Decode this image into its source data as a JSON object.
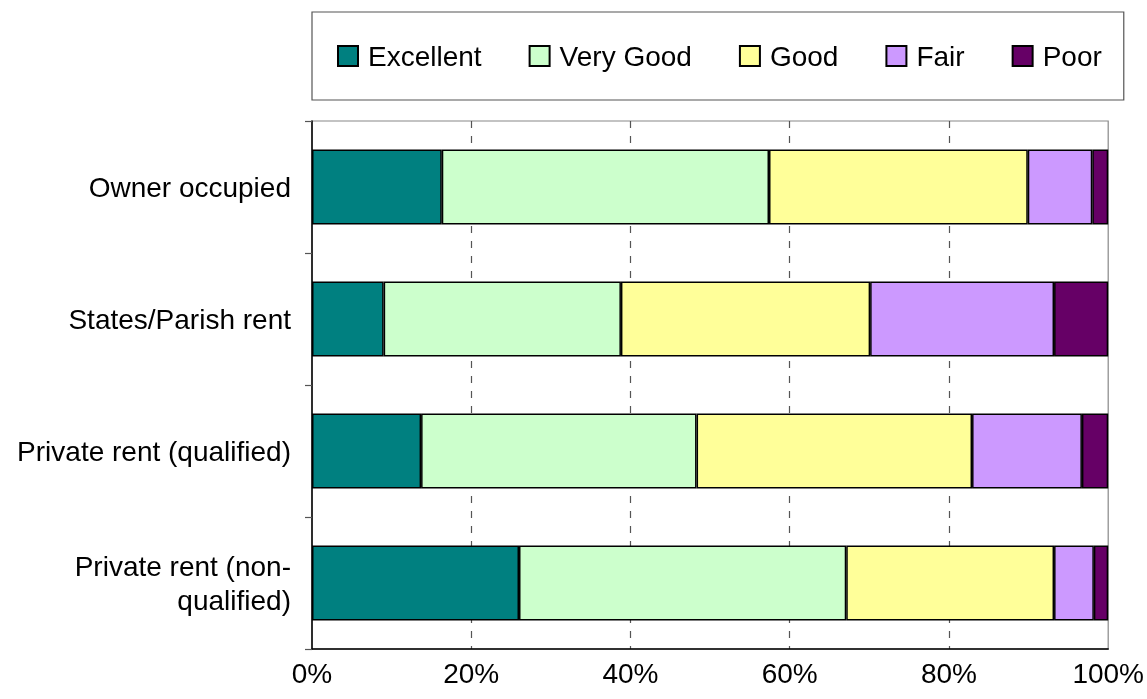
{
  "chart_data": {
    "type": "bar",
    "orientation": "horizontal",
    "stacked": true,
    "categories": [
      "Owner occupied",
      "States/Parish rent",
      "Private rent (qualified)",
      "Private rent (non-qualified)"
    ],
    "series": [
      {
        "name": "Excellent",
        "color": "#008080",
        "values": [
          16.3,
          9.0,
          13.7,
          26.0
        ]
      },
      {
        "name": "Very Good",
        "color": "#ccffcc",
        "values": [
          41.1,
          29.8,
          34.6,
          41.1
        ]
      },
      {
        "name": "Good",
        "color": "#ffff99",
        "values": [
          32.5,
          31.3,
          34.6,
          26.1
        ]
      },
      {
        "name": "Fair",
        "color": "#cc99ff",
        "values": [
          8.1,
          23.1,
          13.8,
          5.0
        ]
      },
      {
        "name": "Poor",
        "color": "#660066",
        "values": [
          2.0,
          6.8,
          3.3,
          1.8
        ]
      }
    ],
    "xlim": [
      0,
      100
    ],
    "xticks": [
      {
        "value": 0,
        "label": "0%"
      },
      {
        "value": 20,
        "label": "20%"
      },
      {
        "value": 40,
        "label": "40%"
      },
      {
        "value": 60,
        "label": "60%"
      },
      {
        "value": 80,
        "label": "80%"
      },
      {
        "value": 100,
        "label": "100%"
      }
    ],
    "grid": "x",
    "legend": "top"
  }
}
